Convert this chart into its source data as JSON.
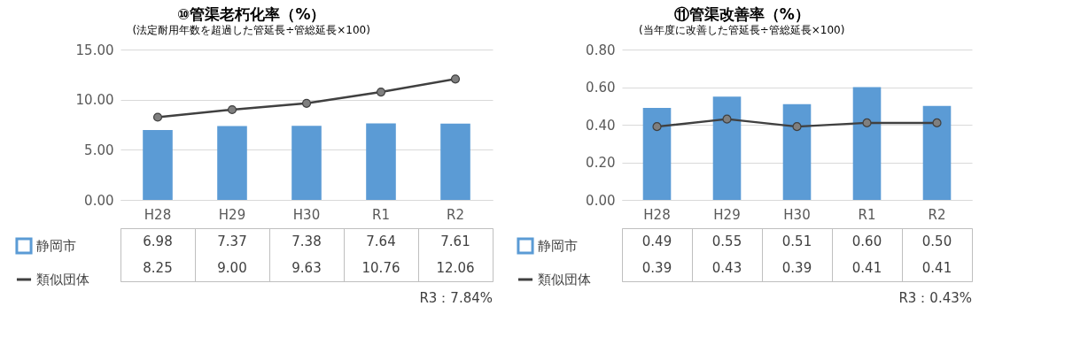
{
  "chart_data": [
    {
      "type": "bar",
      "title": "⑩管渠老朽化率（%）",
      "subtitle": "(法定耐用年数を超過した管延長÷管総延長×100)",
      "categories": [
        "H28",
        "H29",
        "H30",
        "R1",
        "R2"
      ],
      "series": [
        {
          "name": "静岡市",
          "color": "#5b9bd5",
          "values": [
            6.98,
            7.37,
            7.38,
            7.64,
            7.61
          ],
          "value_labels": [
            "6.98",
            "7.37",
            "7.38",
            "7.64",
            "7.61"
          ]
        },
        {
          "name": "類似団体",
          "type": "line",
          "color": "#404040",
          "marker": "circle",
          "values": [
            8.25,
            9.0,
            9.63,
            10.76,
            12.06
          ],
          "value_labels": [
            "8.25",
            "9.00",
            "9.63",
            "10.76",
            "12.06"
          ]
        }
      ],
      "ylim": [
        0,
        15
      ],
      "yticks": [
        {
          "value": 0,
          "label": "0.00"
        },
        {
          "value": 5,
          "label": "5.00"
        },
        {
          "value": 10,
          "label": "10.00"
        },
        {
          "value": 15,
          "label": "15.00"
        }
      ],
      "grid": "y",
      "legend": "bottom left",
      "annotations": [
        "R3：7.84%"
      ]
    },
    {
      "type": "bar",
      "title": "⑪管渠改善率（%）",
      "subtitle": "(当年度に改善した管延長÷管総延長×100)",
      "categories": [
        "H28",
        "H29",
        "H30",
        "R1",
        "R2"
      ],
      "series": [
        {
          "name": "静岡市",
          "color": "#5b9bd5",
          "values": [
            0.49,
            0.55,
            0.51,
            0.6,
            0.5
          ],
          "value_labels": [
            "0.49",
            "0.55",
            "0.51",
            "0.60",
            "0.50"
          ]
        },
        {
          "name": "類似団体",
          "type": "line",
          "color": "#404040",
          "marker": "circle",
          "values": [
            0.39,
            0.43,
            0.39,
            0.41,
            0.41
          ],
          "value_labels": [
            "0.39",
            "0.43",
            "0.39",
            "0.41",
            "0.41"
          ]
        }
      ],
      "ylim": [
        0,
        0.8
      ],
      "yticks": [
        {
          "value": 0,
          "label": "0.00"
        },
        {
          "value": 0.2,
          "label": "0.20"
        },
        {
          "value": 0.4,
          "label": "0.40"
        },
        {
          "value": 0.6,
          "label": "0.60"
        },
        {
          "value": 0.8,
          "label": "0.80"
        }
      ],
      "grid": "y",
      "legend": "bottom left",
      "annotations": [
        "R3：0.43%"
      ]
    }
  ]
}
